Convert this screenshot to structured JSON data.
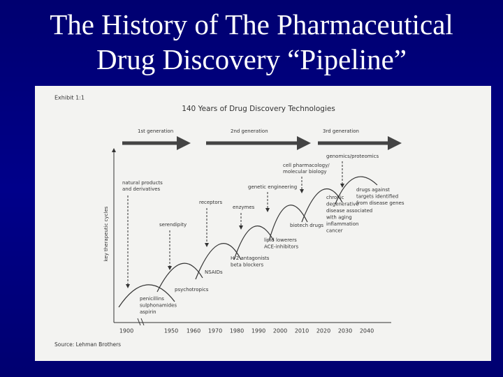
{
  "title": [
    "The History of The Pharmaceutical",
    "Drug Discovery “Pipeline”"
  ],
  "exhibit": {
    "label": "Exhibit 1:1",
    "title": "140 Years of Drug Discovery Technologies",
    "generations": [
      "1st generation",
      "2nd generation",
      "3rd generation"
    ],
    "y_axis_label": "key therapeutic cycles",
    "x_axis_labels": [
      1900,
      1950,
      1960,
      1970,
      1980,
      1990,
      2000,
      2010,
      2020,
      2030,
      2040
    ],
    "technologies": [
      [
        "natural products",
        "and derivatives"
      ],
      [
        "serendipity"
      ],
      [
        "receptors"
      ],
      [
        "enzymes"
      ],
      [
        "genetic engineering"
      ],
      [
        "cell pharmacology/",
        "molecular biology"
      ],
      [
        "genomics/proteomics"
      ]
    ],
    "drug_classes": [
      [
        "penicillins",
        "sulphonamides",
        "aspirin"
      ],
      [
        "psychotropics"
      ],
      [
        "NSAIDs"
      ],
      [
        "H-2 antagonists",
        "beta blockers"
      ],
      [
        "lipid lowerers",
        "ACE-inhibitors"
      ],
      [
        "biotech drugs"
      ],
      [
        "chronic",
        "degenerative",
        "disease associated",
        "with aging",
        "inflammation",
        "cancer"
      ],
      [
        "drugs against",
        "targets identified",
        "from disease genes"
      ]
    ],
    "source": "Source: Lehman Brothers"
  }
}
